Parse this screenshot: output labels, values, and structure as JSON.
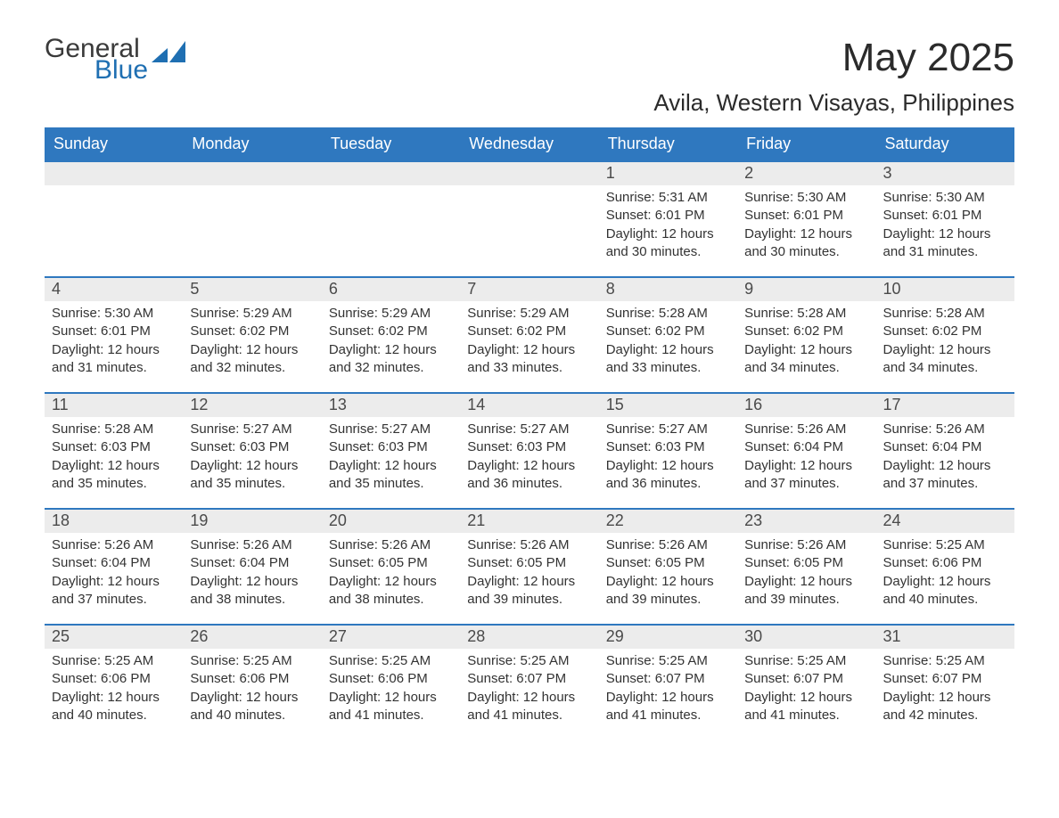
{
  "brand": {
    "word1": "General",
    "word2": "Blue",
    "word1_color": "#3a3a3a",
    "word2_color": "#1f6fb2",
    "mark_color": "#1f6fb2"
  },
  "title": "May 2025",
  "subtitle": "Avila, Western Visayas, Philippines",
  "colors": {
    "header_bg": "#2f78bf",
    "header_text": "#ffffff",
    "row_border": "#2f78bf",
    "daynum_bg": "#ececec",
    "daynum_text": "#4a4a4a",
    "body_text": "#333333",
    "page_bg": "#ffffff"
  },
  "weekdays": [
    "Sunday",
    "Monday",
    "Tuesday",
    "Wednesday",
    "Thursday",
    "Friday",
    "Saturday"
  ],
  "weeks": [
    [
      {
        "n": "",
        "sr": "",
        "ss": "",
        "dl": ""
      },
      {
        "n": "",
        "sr": "",
        "ss": "",
        "dl": ""
      },
      {
        "n": "",
        "sr": "",
        "ss": "",
        "dl": ""
      },
      {
        "n": "",
        "sr": "",
        "ss": "",
        "dl": ""
      },
      {
        "n": "1",
        "sr": "Sunrise: 5:31 AM",
        "ss": "Sunset: 6:01 PM",
        "dl": "Daylight: 12 hours and 30 minutes."
      },
      {
        "n": "2",
        "sr": "Sunrise: 5:30 AM",
        "ss": "Sunset: 6:01 PM",
        "dl": "Daylight: 12 hours and 30 minutes."
      },
      {
        "n": "3",
        "sr": "Sunrise: 5:30 AM",
        "ss": "Sunset: 6:01 PM",
        "dl": "Daylight: 12 hours and 31 minutes."
      }
    ],
    [
      {
        "n": "4",
        "sr": "Sunrise: 5:30 AM",
        "ss": "Sunset: 6:01 PM",
        "dl": "Daylight: 12 hours and 31 minutes."
      },
      {
        "n": "5",
        "sr": "Sunrise: 5:29 AM",
        "ss": "Sunset: 6:02 PM",
        "dl": "Daylight: 12 hours and 32 minutes."
      },
      {
        "n": "6",
        "sr": "Sunrise: 5:29 AM",
        "ss": "Sunset: 6:02 PM",
        "dl": "Daylight: 12 hours and 32 minutes."
      },
      {
        "n": "7",
        "sr": "Sunrise: 5:29 AM",
        "ss": "Sunset: 6:02 PM",
        "dl": "Daylight: 12 hours and 33 minutes."
      },
      {
        "n": "8",
        "sr": "Sunrise: 5:28 AM",
        "ss": "Sunset: 6:02 PM",
        "dl": "Daylight: 12 hours and 33 minutes."
      },
      {
        "n": "9",
        "sr": "Sunrise: 5:28 AM",
        "ss": "Sunset: 6:02 PM",
        "dl": "Daylight: 12 hours and 34 minutes."
      },
      {
        "n": "10",
        "sr": "Sunrise: 5:28 AM",
        "ss": "Sunset: 6:02 PM",
        "dl": "Daylight: 12 hours and 34 minutes."
      }
    ],
    [
      {
        "n": "11",
        "sr": "Sunrise: 5:28 AM",
        "ss": "Sunset: 6:03 PM",
        "dl": "Daylight: 12 hours and 35 minutes."
      },
      {
        "n": "12",
        "sr": "Sunrise: 5:27 AM",
        "ss": "Sunset: 6:03 PM",
        "dl": "Daylight: 12 hours and 35 minutes."
      },
      {
        "n": "13",
        "sr": "Sunrise: 5:27 AM",
        "ss": "Sunset: 6:03 PM",
        "dl": "Daylight: 12 hours and 35 minutes."
      },
      {
        "n": "14",
        "sr": "Sunrise: 5:27 AM",
        "ss": "Sunset: 6:03 PM",
        "dl": "Daylight: 12 hours and 36 minutes."
      },
      {
        "n": "15",
        "sr": "Sunrise: 5:27 AM",
        "ss": "Sunset: 6:03 PM",
        "dl": "Daylight: 12 hours and 36 minutes."
      },
      {
        "n": "16",
        "sr": "Sunrise: 5:26 AM",
        "ss": "Sunset: 6:04 PM",
        "dl": "Daylight: 12 hours and 37 minutes."
      },
      {
        "n": "17",
        "sr": "Sunrise: 5:26 AM",
        "ss": "Sunset: 6:04 PM",
        "dl": "Daylight: 12 hours and 37 minutes."
      }
    ],
    [
      {
        "n": "18",
        "sr": "Sunrise: 5:26 AM",
        "ss": "Sunset: 6:04 PM",
        "dl": "Daylight: 12 hours and 37 minutes."
      },
      {
        "n": "19",
        "sr": "Sunrise: 5:26 AM",
        "ss": "Sunset: 6:04 PM",
        "dl": "Daylight: 12 hours and 38 minutes."
      },
      {
        "n": "20",
        "sr": "Sunrise: 5:26 AM",
        "ss": "Sunset: 6:05 PM",
        "dl": "Daylight: 12 hours and 38 minutes."
      },
      {
        "n": "21",
        "sr": "Sunrise: 5:26 AM",
        "ss": "Sunset: 6:05 PM",
        "dl": "Daylight: 12 hours and 39 minutes."
      },
      {
        "n": "22",
        "sr": "Sunrise: 5:26 AM",
        "ss": "Sunset: 6:05 PM",
        "dl": "Daylight: 12 hours and 39 minutes."
      },
      {
        "n": "23",
        "sr": "Sunrise: 5:26 AM",
        "ss": "Sunset: 6:05 PM",
        "dl": "Daylight: 12 hours and 39 minutes."
      },
      {
        "n": "24",
        "sr": "Sunrise: 5:25 AM",
        "ss": "Sunset: 6:06 PM",
        "dl": "Daylight: 12 hours and 40 minutes."
      }
    ],
    [
      {
        "n": "25",
        "sr": "Sunrise: 5:25 AM",
        "ss": "Sunset: 6:06 PM",
        "dl": "Daylight: 12 hours and 40 minutes."
      },
      {
        "n": "26",
        "sr": "Sunrise: 5:25 AM",
        "ss": "Sunset: 6:06 PM",
        "dl": "Daylight: 12 hours and 40 minutes."
      },
      {
        "n": "27",
        "sr": "Sunrise: 5:25 AM",
        "ss": "Sunset: 6:06 PM",
        "dl": "Daylight: 12 hours and 41 minutes."
      },
      {
        "n": "28",
        "sr": "Sunrise: 5:25 AM",
        "ss": "Sunset: 6:07 PM",
        "dl": "Daylight: 12 hours and 41 minutes."
      },
      {
        "n": "29",
        "sr": "Sunrise: 5:25 AM",
        "ss": "Sunset: 6:07 PM",
        "dl": "Daylight: 12 hours and 41 minutes."
      },
      {
        "n": "30",
        "sr": "Sunrise: 5:25 AM",
        "ss": "Sunset: 6:07 PM",
        "dl": "Daylight: 12 hours and 41 minutes."
      },
      {
        "n": "31",
        "sr": "Sunrise: 5:25 AM",
        "ss": "Sunset: 6:07 PM",
        "dl": "Daylight: 12 hours and 42 minutes."
      }
    ]
  ]
}
